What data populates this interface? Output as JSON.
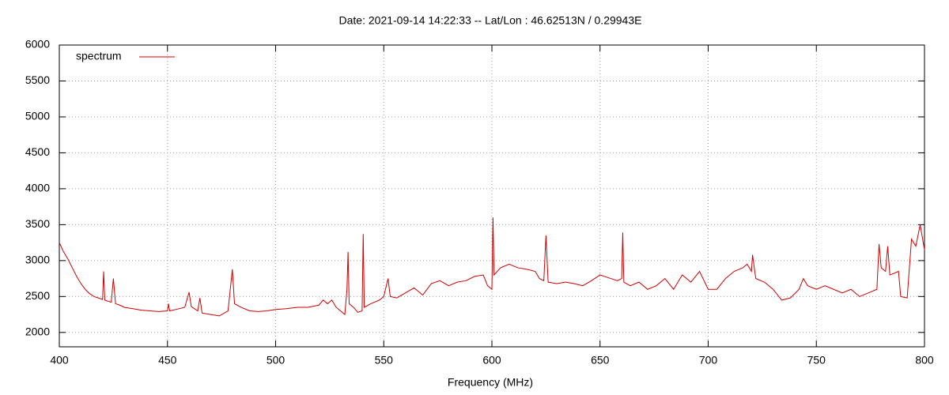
{
  "chart_data": {
    "type": "line",
    "title": "Date: 2021-09-14 14:22:33  --  Lat/Lon : 46.62513N / 0.29943E",
    "x_label": "Frequency (MHz)",
    "xlim": [
      400,
      800
    ],
    "xticks": [
      400,
      450,
      500,
      550,
      600,
      650,
      700,
      750,
      800
    ],
    "ylim": [
      1800,
      6000
    ],
    "yticks": [
      2000,
      2500,
      3000,
      3500,
      4000,
      4500,
      5000,
      5500,
      6000
    ],
    "grid": true,
    "legend": "top-left",
    "x": [
      400,
      402,
      404,
      406,
      408,
      410,
      412,
      414,
      416,
      418,
      420,
      420.5,
      421,
      424,
      425,
      426,
      428,
      430,
      434,
      438,
      442,
      446,
      450,
      450.5,
      451,
      454,
      458,
      460,
      461,
      464,
      465,
      466,
      470,
      474,
      478,
      480,
      481,
      484,
      488,
      492,
      496,
      500,
      505,
      510,
      515,
      520,
      522,
      524,
      526,
      528,
      530,
      532,
      533,
      533.5,
      534,
      536,
      538,
      540,
      540.5,
      541,
      544,
      548,
      550,
      552,
      553,
      556,
      560,
      564,
      568,
      572,
      576,
      580,
      584,
      588,
      592,
      596,
      598,
      600,
      600.5,
      601,
      604,
      608,
      612,
      616,
      620,
      622,
      624,
      625,
      626,
      630,
      634,
      638,
      642,
      646,
      650,
      654,
      658,
      660,
      660.5,
      661,
      664,
      668,
      672,
      676,
      680,
      684,
      688,
      692,
      696,
      700,
      704,
      708,
      712,
      716,
      718,
      720,
      720.5,
      722,
      726,
      730,
      734,
      738,
      742,
      744,
      746,
      750,
      754,
      758,
      762,
      766,
      770,
      774,
      778,
      779,
      780,
      782,
      783,
      784,
      788,
      789,
      792,
      794,
      796,
      798,
      800
    ],
    "series": [
      {
        "name": "spectrum",
        "color": "#d00000",
        "values": [
          3250,
          3120,
          3020,
          2900,
          2780,
          2680,
          2600,
          2540,
          2500,
          2480,
          2460,
          2850,
          2450,
          2420,
          2750,
          2400,
          2380,
          2350,
          2330,
          2310,
          2300,
          2290,
          2300,
          2400,
          2300,
          2320,
          2350,
          2560,
          2360,
          2300,
          2480,
          2270,
          2250,
          2230,
          2300,
          2880,
          2400,
          2350,
          2300,
          2290,
          2300,
          2320,
          2330,
          2350,
          2350,
          2380,
          2450,
          2400,
          2450,
          2350,
          2300,
          2250,
          2600,
          3120,
          2400,
          2350,
          2280,
          2300,
          3370,
          2350,
          2400,
          2450,
          2500,
          2750,
          2500,
          2480,
          2550,
          2620,
          2520,
          2680,
          2720,
          2650,
          2700,
          2720,
          2780,
          2800,
          2650,
          2600,
          3600,
          2800,
          2900,
          2950,
          2900,
          2880,
          2850,
          2750,
          2720,
          3350,
          2700,
          2680,
          2700,
          2680,
          2650,
          2720,
          2800,
          2760,
          2720,
          2750,
          3390,
          2700,
          2650,
          2700,
          2600,
          2650,
          2750,
          2600,
          2800,
          2700,
          2850,
          2600,
          2600,
          2750,
          2850,
          2900,
          2950,
          2850,
          3080,
          2750,
          2700,
          2600,
          2450,
          2480,
          2600,
          2750,
          2650,
          2600,
          2650,
          2600,
          2550,
          2600,
          2500,
          2550,
          2600,
          3230,
          2900,
          2850,
          3200,
          2800,
          2850,
          2500,
          2480,
          3300,
          3200,
          3500,
          3150
        ]
      }
    ]
  }
}
